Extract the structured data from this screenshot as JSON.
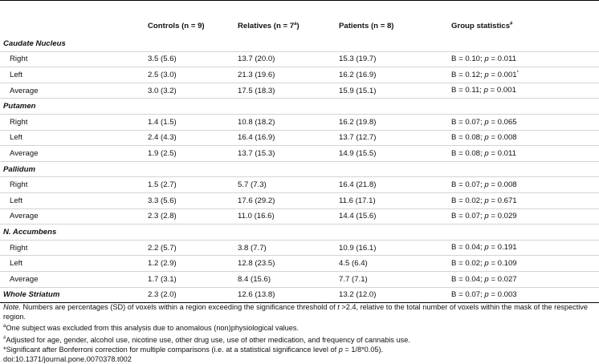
{
  "columns": {
    "region": "",
    "controls": "Controls (n = 9)",
    "relatives_prefix": "Relatives (n = 7",
    "relatives_sup": "a",
    "relatives_suffix": ")",
    "patients": "Patients (n = 8)",
    "group_stats": "Group statistics",
    "group_stats_sup": "#"
  },
  "sections": [
    {
      "title": "Caudate Nucleus",
      "rows": [
        {
          "label": "Right",
          "controls": "3.5 (5.6)",
          "relatives": "13.7 (20.0)",
          "patients": "15.3 (19.7)",
          "stats_b": "B = 0.10; ",
          "stats_p_label": "p",
          "stats_p": " = 0.011",
          "sup": ""
        },
        {
          "label": "Left",
          "controls": "2.5 (3.0)",
          "relatives": "21.3 (19.6)",
          "patients": "16.2 (16.9)",
          "stats_b": "B = 0.12; ",
          "stats_p_label": "p",
          "stats_p": " = 0.001",
          "sup": "*"
        },
        {
          "label": "Average",
          "controls": "3.0 (3.2)",
          "relatives": "17.5 (18.3)",
          "patients": "15.9 (15.1)",
          "stats_b": "B = 0.11; ",
          "stats_p_label": "p",
          "stats_p": " = 0.001",
          "sup": ""
        }
      ]
    },
    {
      "title": "Putamen",
      "rows": [
        {
          "label": "Right",
          "controls": "1.4 (1.5)",
          "relatives": "10.8 (18.2)",
          "patients": "16.2 (19.8)",
          "stats_b": "B = 0.07; ",
          "stats_p_label": "p",
          "stats_p": " = 0.065",
          "sup": ""
        },
        {
          "label": "Left",
          "controls": "2.4 (4.3)",
          "relatives": "16.4 (16.9)",
          "patients": "13.7 (12.7)",
          "stats_b": "B = 0.08; ",
          "stats_p_label": "p",
          "stats_p": " = 0.008",
          "sup": ""
        },
        {
          "label": "Average",
          "controls": "1.9 (2.5)",
          "relatives": "13.7 (15.3)",
          "patients": "14.9 (15.5)",
          "stats_b": "B = 0.08; ",
          "stats_p_label": "p",
          "stats_p": " = 0.011",
          "sup": ""
        }
      ]
    },
    {
      "title": "Pallidum",
      "rows": [
        {
          "label": "Right",
          "controls": "1.5 (2.7)",
          "relatives": "5.7 (7.3)",
          "patients": "16.4 (21.8)",
          "stats_b": "B = 0.07; ",
          "stats_p_label": "p",
          "stats_p": " = 0.008",
          "sup": ""
        },
        {
          "label": "Left",
          "controls": "3.3 (5.6)",
          "relatives": "17.6 (29.2)",
          "patients": "11.6 (17.1)",
          "stats_b": "B = 0.02; ",
          "stats_p_label": "p",
          "stats_p": " = 0.671",
          "sup": ""
        },
        {
          "label": "Average",
          "controls": "2.3 (2.8)",
          "relatives": "11.0 (16.6)",
          "patients": "14.4 (15.6)",
          "stats_b": "B = 0.07; ",
          "stats_p_label": "p",
          "stats_p": " = 0.029",
          "sup": ""
        }
      ]
    },
    {
      "title": "N. Accumbens",
      "rows": [
        {
          "label": "Right",
          "controls": "2.2 (5.7)",
          "relatives": "3.8 (7.7)",
          "patients": "10.9 (16.1)",
          "stats_b": "B = 0.04; ",
          "stats_p_label": "p",
          "stats_p": " = 0.191",
          "sup": ""
        },
        {
          "label": "Left",
          "controls": "1.2 (2.9)",
          "relatives": "12.8 (23.5)",
          "patients": "4.5 (6.4)",
          "stats_b": "B = 0.02; ",
          "stats_p_label": "p",
          "stats_p": " = 0.109",
          "sup": ""
        },
        {
          "label": "Average",
          "controls": "1.7 (3.1)",
          "relatives": "8.4 (15.6)",
          "patients": "7.7 (7.1)",
          "stats_b": "B = 0.04; ",
          "stats_p_label": "p",
          "stats_p": " = 0.027",
          "sup": ""
        }
      ]
    }
  ],
  "whole": {
    "label": "Whole Striatum",
    "controls": "2.3 (2.0)",
    "relatives": "12.6 (13.8)",
    "patients": "13.2 (12.0)",
    "stats_b": "B = 0.07; ",
    "stats_p_label": "p",
    "stats_p": " = 0.003"
  },
  "notes": {
    "note_label": "Note.",
    "note_text_1": " Numbers are percentages (SD) of voxels within a region exceeding the significance threshold of ",
    "note_t": "t",
    "note_text_2": " >2.4, relative to the total number of voxels within the mask of the respective region.",
    "a_sup": "a",
    "a_text": "One subject was excluded from this analysis due to anomalous (non)physiological values.",
    "hash_sup": "#",
    "hash_text": "Adjusted for age, gender, alcohol use, nicotine use, other drug use, use of other medication, and frequency of cannabis use.",
    "star_text_1": "*Significant after Bonferroni correction for multiple comparisons (i.e. at a statistical significance level of ",
    "star_p": "p",
    "star_text_2": " = 1/8*0.05).",
    "doi": "doi:10.1371/journal.pone.0070378.t002"
  }
}
